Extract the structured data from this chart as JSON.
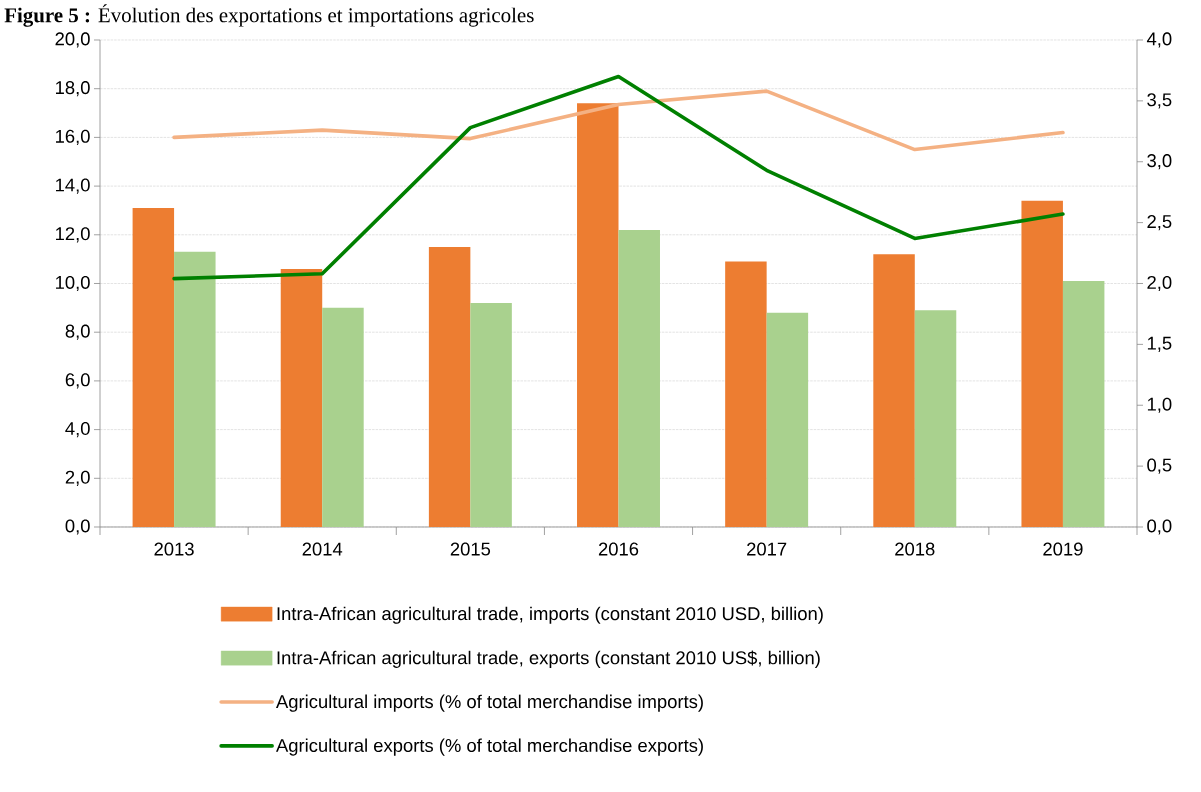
{
  "chart_data": {
    "type": "bar",
    "title": "**Figure 5 :** Évolution des exportations et importations agricoles",
    "categories": [
      "2013",
      "2014",
      "2015",
      "2016",
      "2017",
      "2018",
      "2019"
    ],
    "series": [
      {
        "name": "Intra-African agricultural trade, imports (constant 2010 USD, billion)",
        "color": "#ed7d31",
        "values": [
          13.1,
          10.6,
          11.5,
          17.4,
          10.9,
          11.2,
          13.4
        ]
      },
      {
        "name": "Intra-African agricultural trade, exports (constant 2010 US$, billion)",
        "color": "#a9d18e",
        "values": [
          11.3,
          9.0,
          9.2,
          12.2,
          8.8,
          8.9,
          10.1
        ]
      },
      {
        "name": "Agricultural imports (% of total merchandise imports)",
        "type": "line",
        "axis": "y2",
        "color": "#f4b183",
        "values": [
          3.2,
          3.26,
          3.19,
          3.47,
          3.58,
          3.1,
          3.24
        ]
      },
      {
        "name": "Agricultural exports (% of total merchandise exports)",
        "type": "line",
        "axis": "y2",
        "color": "#008000",
        "values": [
          2.04,
          2.08,
          3.28,
          3.7,
          2.93,
          2.37,
          2.57
        ]
      }
    ],
    "ylim": [
      0,
      20
    ],
    "yticks": [
      {
        "value": 0,
        "label": "0,0"
      },
      {
        "value": 2,
        "label": "2,0"
      },
      {
        "value": 4,
        "label": "4,0"
      },
      {
        "value": 6,
        "label": "6,0"
      },
      {
        "value": 8,
        "label": "8,0"
      },
      {
        "value": 10,
        "label": "10,0"
      },
      {
        "value": 12,
        "label": "12,0"
      },
      {
        "value": 14,
        "label": "14,0"
      },
      {
        "value": 16,
        "label": "16,0"
      },
      {
        "value": 18,
        "label": "18,0"
      },
      {
        "value": 20,
        "label": "20,0"
      }
    ],
    "y2lim": [
      0,
      4
    ],
    "y2ticks": [
      {
        "value": 0,
        "label": "0,0"
      },
      {
        "value": 0.5,
        "label": "0,5"
      },
      {
        "value": 1,
        "label": "1,0"
      },
      {
        "value": 1.5,
        "label": "1,5"
      },
      {
        "value": 2,
        "label": "2,0"
      },
      {
        "value": 2.5,
        "label": "2,5"
      },
      {
        "value": 3,
        "label": "3,0"
      },
      {
        "value": 3.5,
        "label": "3,5"
      },
      {
        "value": 4,
        "label": "4,0"
      }
    ],
    "grid": "y",
    "legend": "bottom"
  }
}
